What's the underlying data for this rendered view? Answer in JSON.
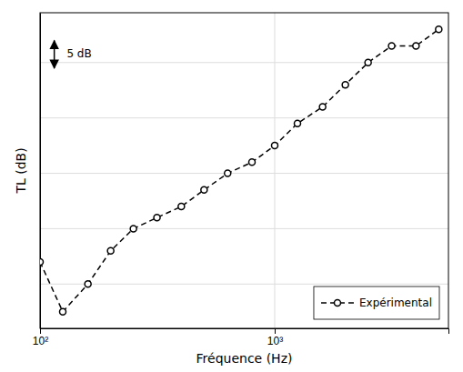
{
  "chart_data": {
    "type": "line",
    "x": [
      100,
      125,
      160,
      200,
      250,
      315,
      400,
      500,
      630,
      800,
      1000,
      1250,
      1600,
      2000,
      2500,
      3150,
      4000,
      5000
    ],
    "series": [
      {
        "name": "Expérimental",
        "color": "black",
        "marker": "circle",
        "line_style": "dashed",
        "values": [
          14,
          5,
          10,
          16,
          20,
          22,
          24,
          27,
          30,
          32,
          35,
          39,
          42,
          46,
          50,
          53,
          53,
          56
        ]
      }
    ],
    "x_label": "Fréquence (Hz)",
    "y_label": "TL (dB)",
    "log": "x",
    "xlim": [
      100,
      5500
    ],
    "ylim": [
      2,
      59
    ],
    "xticks": [
      {
        "value": 100,
        "label": "10²"
      },
      {
        "value": 1000,
        "label": "10³"
      }
    ],
    "yticks": [
      10,
      20,
      30,
      40,
      50
    ],
    "tick_labels": "x",
    "grid": true,
    "legend": "lower right",
    "annotations": [
      {
        "text": "5 dB",
        "x": 130,
        "y": 51.5,
        "arrow": {
          "x": 115,
          "y": [
            49,
            54
          ]
        }
      }
    ]
  }
}
